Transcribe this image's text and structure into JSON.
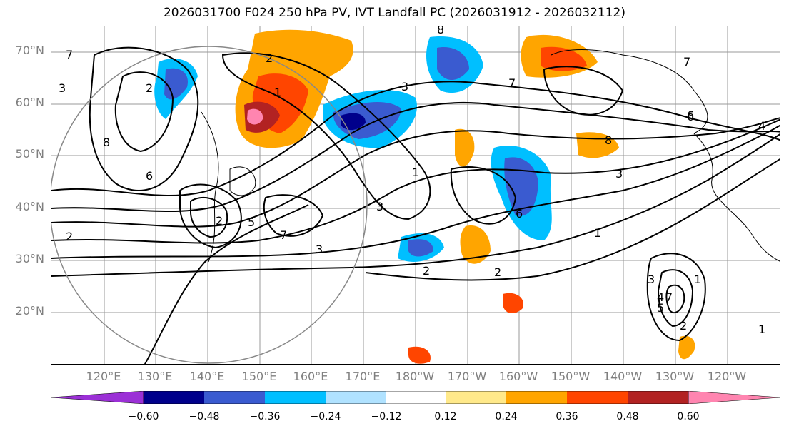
{
  "title": "2026031700 F024 250 hPa PV, IVT Landfall PC (2026031912 - 2026032112)",
  "map": {
    "lat_labels": [
      "70°N",
      "60°N",
      "50°N",
      "40°N",
      "30°N",
      "20°N"
    ],
    "lon_labels": [
      "120°E",
      "130°E",
      "140°E",
      "150°E",
      "160°E",
      "170°E",
      "180°W",
      "170°W",
      "160°W",
      "150°W",
      "140°W",
      "130°W",
      "120°W"
    ],
    "contour_labels": [
      "7",
      "2",
      "3",
      "1",
      "8",
      "6",
      "2",
      "3",
      "8",
      "7",
      "6",
      "2",
      "5",
      "7",
      "3",
      "1",
      "3",
      "2",
      "2",
      "6",
      "1",
      "8",
      "7",
      "6",
      "4",
      "3",
      "3",
      "2",
      "1",
      "5",
      "4",
      "7",
      "2",
      "1"
    ]
  },
  "colorbar": {
    "tick_labels": [
      "−0.60",
      "−0.48",
      "−0.36",
      "−0.24",
      "−0.12",
      "0.12",
      "0.24",
      "0.36",
      "0.48",
      "0.60"
    ],
    "colors": [
      "#9b30d6",
      "#00008b",
      "#3a5bd0",
      "#00bfff",
      "#b0e2ff",
      "#ffffff",
      "#ffe98a",
      "#ffa500",
      "#ff4500",
      "#b22222",
      "#ff85b0"
    ]
  }
}
